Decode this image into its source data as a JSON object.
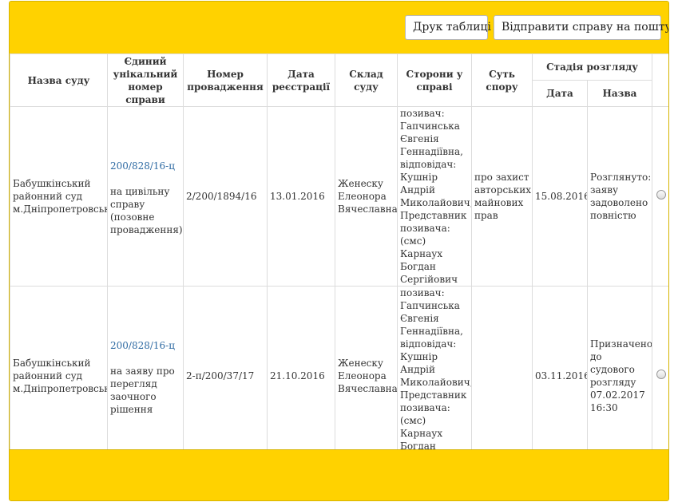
{
  "toolbar": {
    "print_label": "Друк таблиці",
    "mail_label": "Відправити справу на пошту"
  },
  "table": {
    "headers": {
      "court": "Назва суду",
      "unique_number": "Єдиний унікальний номер справи",
      "proceeding_number": "Номер провадження",
      "reg_date": "Дата реєстрації",
      "judges": "Склад суду",
      "parties": "Сторони у справі",
      "subject": "Суть спору",
      "stage": "Стадія розгляду",
      "stage_date": "Дата",
      "stage_name": "Назва"
    },
    "rows": [
      {
        "court": "Бабушкінський районний суд м.Дніпропетровська",
        "unique_number": "200/828/16-ц",
        "case_type": "на цивільну справу (позовне провадження)",
        "proceeding_number": "2/200/1894/16",
        "reg_date": "13.01.2016",
        "judges": "Женеску Елеонора Вячеславна",
        "parties": "позивач: Гапчинська Євгенія Геннадіївна, відповідач: Кушнір Андрій Миколайович, Представник позивача: (смс) Карнаух Богдан Сергійович",
        "subject": "про захист авторських майнових прав",
        "stage_date": "15.08.2016",
        "stage_name": "Розглянуто: заяву задоволено повністю"
      },
      {
        "court": "Бабушкінський районний суд м.Дніпропетровська",
        "unique_number": "200/828/16-ц",
        "case_type": "на заяву про перегляд заочного рішення",
        "proceeding_number": "2-п/200/37/17",
        "reg_date": "21.10.2016",
        "judges": "Женеску Елеонора Вячеславна",
        "parties": "позивач: Гапчинська Євгенія Геннадіївна, відповідач: Кушнір Андрій Миколайович, Представник позивача: (смс) Карнаух Богдан Сергійович",
        "subject": "",
        "stage_date": "03.11.2016",
        "stage_name": "Призначено до судового розгляду 07.02.2017 16:30"
      }
    ]
  }
}
